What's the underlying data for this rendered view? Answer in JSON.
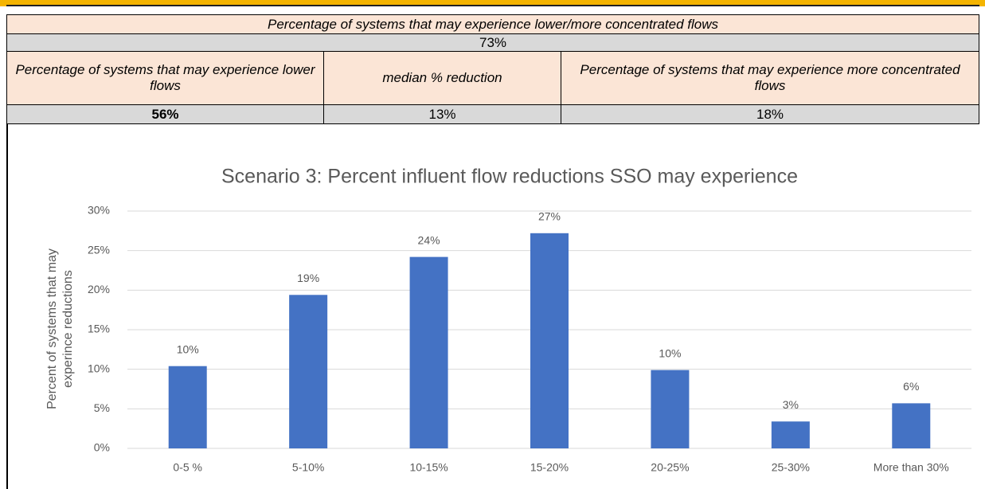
{
  "table": {
    "header": "Percentage of systems that may experience lower/more concentrated flows",
    "total": "73%",
    "columns": [
      "Percentage of systems that may experience lower flows",
      "median % reduction",
      "Percentage of systems that may experience more concentrated flows"
    ],
    "values": [
      "56%",
      "13%",
      "18%"
    ]
  },
  "chart_data": {
    "type": "bar",
    "title": "Scenario 3: Percent influent flow reductions SSO may experience",
    "ylabel": [
      "Percent of systems that may",
      "experince reductions"
    ],
    "categories": [
      "0-5 %",
      "5-10%",
      "10-15%",
      "15-20%",
      "20-25%",
      "25-30%",
      "More than 30%"
    ],
    "values": [
      10.4,
      19.4,
      24.2,
      27.2,
      9.9,
      3.4,
      5.7
    ],
    "value_labels": [
      "10%",
      "19%",
      "24%",
      "27%",
      "10%",
      "3%",
      "6%"
    ],
    "color": "#4472c4",
    "ylim": [
      0,
      30
    ],
    "yticks": [
      {
        "value": 0,
        "label": "0%"
      },
      {
        "value": 5,
        "label": "5%"
      },
      {
        "value": 10,
        "label": "10%"
      },
      {
        "value": 15,
        "label": "15%"
      },
      {
        "value": 20,
        "label": "20%"
      },
      {
        "value": 25,
        "label": "25%"
      },
      {
        "value": 30,
        "label": "30%"
      }
    ],
    "grid": true
  }
}
